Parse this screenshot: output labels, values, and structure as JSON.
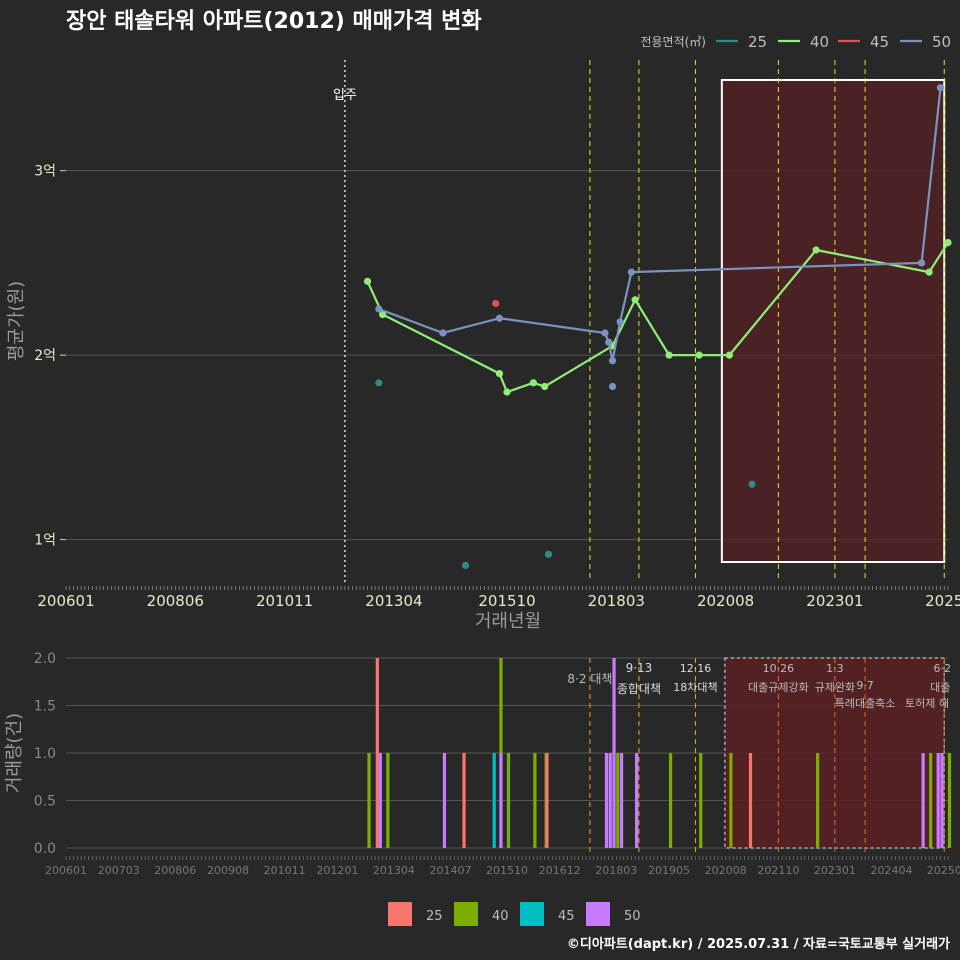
{
  "title": "장안 태솔타워 아파트(2012) 매매가격 변화",
  "footer": "©디아파트(dapt.kr) / 2025.07.31 / 자료=국토교통부 실거래가",
  "colors": {
    "background": "#282828",
    "grid": "#555555",
    "s25": "#2e8b87",
    "s40": "#90ee78",
    "s45": "#e0524f",
    "s50": "#7b93c0",
    "b25": "#f8766d",
    "b40": "#7cae00",
    "b45": "#00bfc4",
    "b50": "#c77cff",
    "policy": "#e8e020",
    "policy_bottom": "#f0a020",
    "highlight": "#5a1f22"
  },
  "chart_data": [
    {
      "type": "line",
      "title": "장안 태솔타워 아파트(2012) 매매가격 변화",
      "xlabel": "거래년월",
      "ylabel": "평균가(원)",
      "x_tick_labels": [
        "200601",
        "200806",
        "201011",
        "201304",
        "201510",
        "201803",
        "202008",
        "202301",
        "2025"
      ],
      "y_tick_labels": [
        "1억",
        "2억",
        "3억"
      ],
      "y_ticks": [
        1.0,
        2.0,
        3.0
      ],
      "ylim": [
        0.77,
        3.6
      ],
      "xlim": [
        "2006-01",
        "2025-07"
      ],
      "legend_title": "전용면적(㎡)",
      "legend_position": "top-right",
      "annotation": {
        "label": "입주",
        "date": "2012-03"
      },
      "policy_dates": [
        "2017-08",
        "2018-09",
        "2019-12",
        "2021-10",
        "2023-01",
        "2023-09",
        "2025-06"
      ],
      "highlight_range": [
        "2020-07",
        "2025-06"
      ],
      "series": [
        {
          "name": "25",
          "line": false,
          "points": [
            {
              "date": "2012-12",
              "value": 1.85
            },
            {
              "date": "2014-11",
              "value": 0.86
            },
            {
              "date": "2016-09",
              "value": 0.92
            },
            {
              "date": "2021-03",
              "value": 1.3
            }
          ]
        },
        {
          "name": "40",
          "line": true,
          "points": [
            {
              "date": "2012-09",
              "value": 2.4
            },
            {
              "date": "2013-01",
              "value": 2.22
            },
            {
              "date": "2015-08",
              "value": 1.9
            },
            {
              "date": "2015-10",
              "value": 1.8
            },
            {
              "date": "2016-05",
              "value": 1.85
            },
            {
              "date": "2016-08",
              "value": 1.83
            },
            {
              "date": "2018-02",
              "value": 2.05
            },
            {
              "date": "2018-08",
              "value": 2.3
            },
            {
              "date": "2019-05",
              "value": 2.0
            },
            {
              "date": "2020-01",
              "value": 2.0
            },
            {
              "date": "2020-09",
              "value": 2.0
            },
            {
              "date": "2022-08",
              "value": 2.57
            },
            {
              "date": "2025-02",
              "value": 2.45
            },
            {
              "date": "2025-07",
              "value": 2.61
            }
          ]
        },
        {
          "name": "45",
          "line": false,
          "points": [
            {
              "date": "2015-07",
              "value": 2.28
            }
          ]
        },
        {
          "name": "50",
          "line": true,
          "points": [
            {
              "date": "2012-12",
              "value": 2.25
            },
            {
              "date": "2014-05",
              "value": 2.12
            },
            {
              "date": "2015-08",
              "value": 2.2
            },
            {
              "date": "2017-12",
              "value": 2.12
            },
            {
              "date": "2018-01",
              "value": 2.07
            },
            {
              "date": "2018-02",
              "value": 1.97
            },
            {
              "date": "2018-04",
              "value": 2.18
            },
            {
              "date": "2018-07",
              "value": 2.45
            },
            {
              "date": "2024-12",
              "value": 2.5
            },
            {
              "date": "2025-05",
              "value": 3.45
            }
          ]
        },
        {
          "name": "50-extra",
          "line": false,
          "points": [
            {
              "date": "2018-02",
              "value": 1.83
            }
          ]
        }
      ]
    },
    {
      "type": "bar",
      "xlabel": "",
      "ylabel": "거래량(건)",
      "y_tick_labels": [
        "0.0",
        "0.5",
        "1.0",
        "1.5",
        "2.0"
      ],
      "y_ticks": [
        0,
        0.5,
        1.0,
        1.5,
        2.0
      ],
      "ylim": [
        0,
        2.0
      ],
      "xlim": [
        "2006-01",
        "2025-07"
      ],
      "x_tick_labels": [
        "200601",
        "200703",
        "200806",
        "200908",
        "201011",
        "201201",
        "201304",
        "201407",
        "201510",
        "201612",
        "201803",
        "201905",
        "202008",
        "202110",
        "202301",
        "202404",
        "20250"
      ],
      "legend_position": "bottom",
      "series_names": [
        "25",
        "40",
        "45",
        "50"
      ],
      "bars": [
        {
          "date": "2012-09",
          "area": "40",
          "count": 1
        },
        {
          "date": "2012-12",
          "area": "25",
          "count": 2
        },
        {
          "date": "2012-12",
          "area": "50",
          "count": 1
        },
        {
          "date": "2013-02",
          "area": "40",
          "count": 1
        },
        {
          "date": "2014-05",
          "area": "50",
          "count": 1
        },
        {
          "date": "2014-11",
          "area": "25",
          "count": 1
        },
        {
          "date": "2015-07",
          "area": "45",
          "count": 1
        },
        {
          "date": "2015-08",
          "area": "40",
          "count": 2
        },
        {
          "date": "2015-08",
          "area": "50",
          "count": 1
        },
        {
          "date": "2015-10",
          "area": "40",
          "count": 1
        },
        {
          "date": "2016-05",
          "area": "40",
          "count": 1
        },
        {
          "date": "2016-08",
          "area": "40",
          "count": 1
        },
        {
          "date": "2016-09",
          "area": "25",
          "count": 1
        },
        {
          "date": "2017-12",
          "area": "50",
          "count": 1
        },
        {
          "date": "2018-01",
          "area": "50",
          "count": 1
        },
        {
          "date": "2018-02",
          "area": "50",
          "count": 2
        },
        {
          "date": "2018-03",
          "area": "40",
          "count": 1
        },
        {
          "date": "2018-04",
          "area": "50",
          "count": 1
        },
        {
          "date": "2018-08",
          "area": "40",
          "count": 1
        },
        {
          "date": "2018-08",
          "area": "50",
          "count": 1
        },
        {
          "date": "2019-05",
          "area": "40",
          "count": 1
        },
        {
          "date": "2020-01",
          "area": "40",
          "count": 1
        },
        {
          "date": "2020-09",
          "area": "40",
          "count": 1
        },
        {
          "date": "2021-03",
          "area": "25",
          "count": 1
        },
        {
          "date": "2022-08",
          "area": "40",
          "count": 1
        },
        {
          "date": "2024-12",
          "area": "50",
          "count": 1
        },
        {
          "date": "2025-02",
          "area": "40",
          "count": 1
        },
        {
          "date": "2025-04",
          "area": "50",
          "count": 1
        },
        {
          "date": "2025-05",
          "area": "50",
          "count": 1
        },
        {
          "date": "2025-07",
          "area": "40",
          "count": 1
        }
      ],
      "policy_labels": [
        {
          "date": "2017-08",
          "line1": "8·2 대책",
          "line2": ""
        },
        {
          "date": "2018-09",
          "line1": "9·13",
          "line2": "종합대책"
        },
        {
          "date": "2019-12",
          "line1": "12·16",
          "line2": "18차대책"
        },
        {
          "date": "2021-10",
          "line1": "10·26",
          "line2": "대출규제강화"
        },
        {
          "date": "2023-01",
          "line1": "1·3",
          "line2": "규제완화"
        },
        {
          "date": "2023-09",
          "line1": "9·7",
          "line2": "특례대출축소"
        },
        {
          "date": "2025-06",
          "line1": "6·2",
          "line2": "대출"
        }
      ],
      "extra_labels": [
        "토허제 해"
      ]
    }
  ]
}
